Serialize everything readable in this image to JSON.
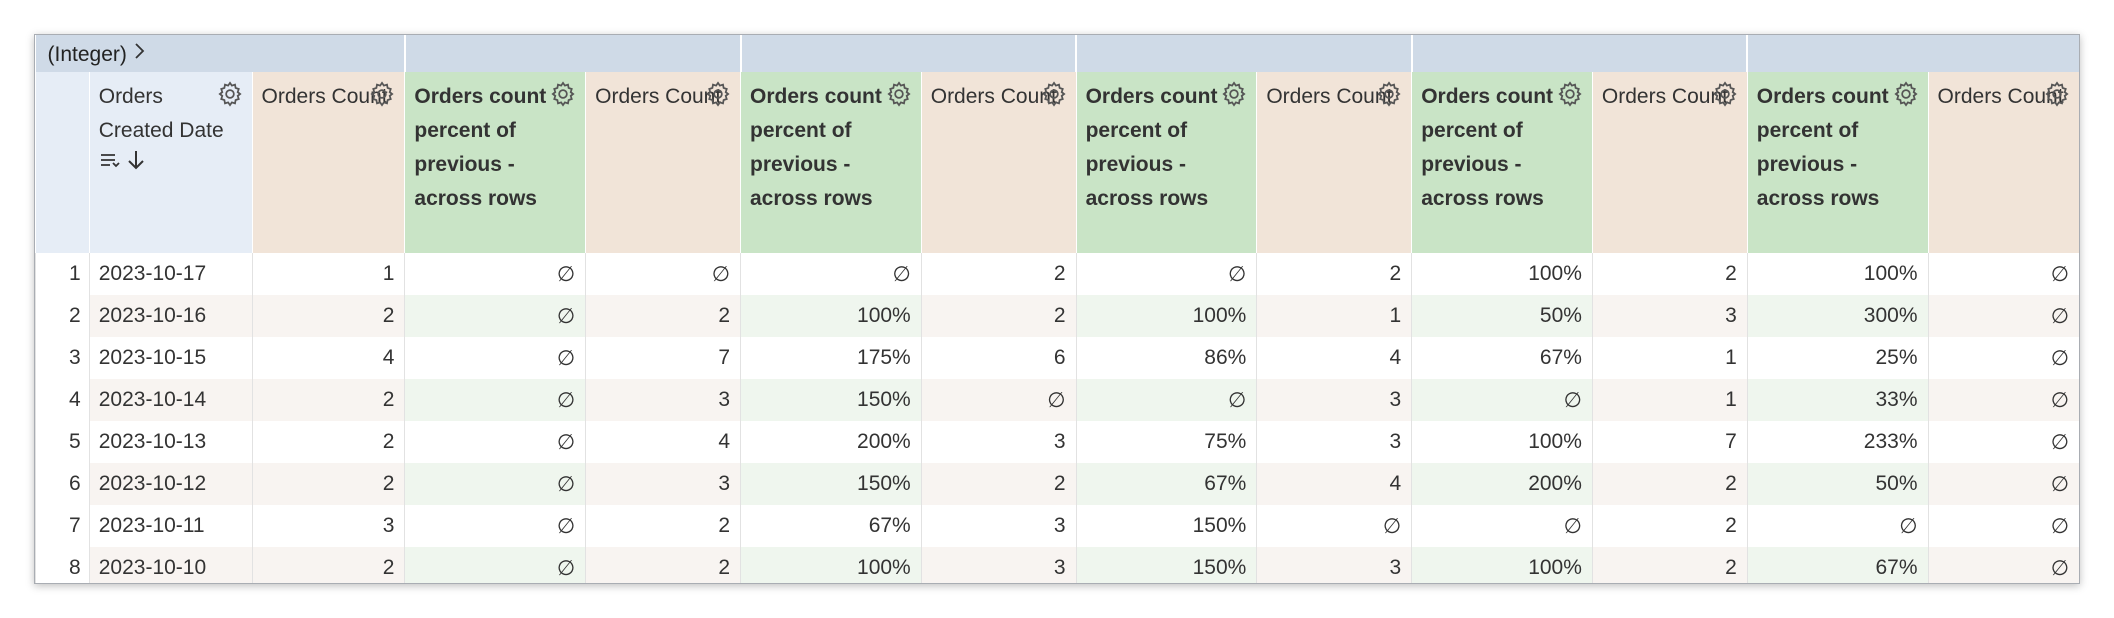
{
  "pivot_label": "(Integer)",
  "header": {
    "columns": [
      "",
      "Orders Created Date",
      "Orders Count",
      "Orders count percent of previous - across rows",
      "Orders Count",
      "Orders count percent of previous - across rows",
      "Orders Count",
      "Orders count percent of previous - across rows",
      "Orders Count",
      "Orders count percent of previous - across rows",
      "Orders Count",
      "Orders count percent of previous - across rows",
      "Orders Count"
    ]
  },
  "table": {
    "rows": [
      [
        1,
        "2023-10-17",
        1,
        "∅",
        "∅",
        "∅",
        2,
        "∅",
        2,
        "100%",
        2,
        "100%",
        "∅"
      ],
      [
        2,
        "2023-10-16",
        2,
        "∅",
        2,
        "100%",
        2,
        "100%",
        1,
        "50%",
        3,
        "300%",
        "∅"
      ],
      [
        3,
        "2023-10-15",
        4,
        "∅",
        7,
        "175%",
        6,
        "86%",
        4,
        "67%",
        1,
        "25%",
        "∅"
      ],
      [
        4,
        "2023-10-14",
        2,
        "∅",
        3,
        "150%",
        "∅",
        "∅",
        3,
        "∅",
        1,
        "33%",
        "∅"
      ],
      [
        5,
        "2023-10-13",
        2,
        "∅",
        4,
        "200%",
        3,
        "75%",
        3,
        "100%",
        7,
        "233%",
        "∅"
      ],
      [
        6,
        "2023-10-12",
        2,
        "∅",
        3,
        "150%",
        2,
        "67%",
        4,
        "200%",
        2,
        "50%",
        "∅"
      ],
      [
        7,
        "2023-10-11",
        3,
        "∅",
        2,
        "67%",
        3,
        "150%",
        "∅",
        "∅",
        2,
        "∅",
        "∅"
      ],
      [
        8,
        "2023-10-10",
        2,
        "∅",
        2,
        "100%",
        3,
        "150%",
        3,
        "100%",
        2,
        "67%",
        "∅"
      ]
    ]
  }
}
